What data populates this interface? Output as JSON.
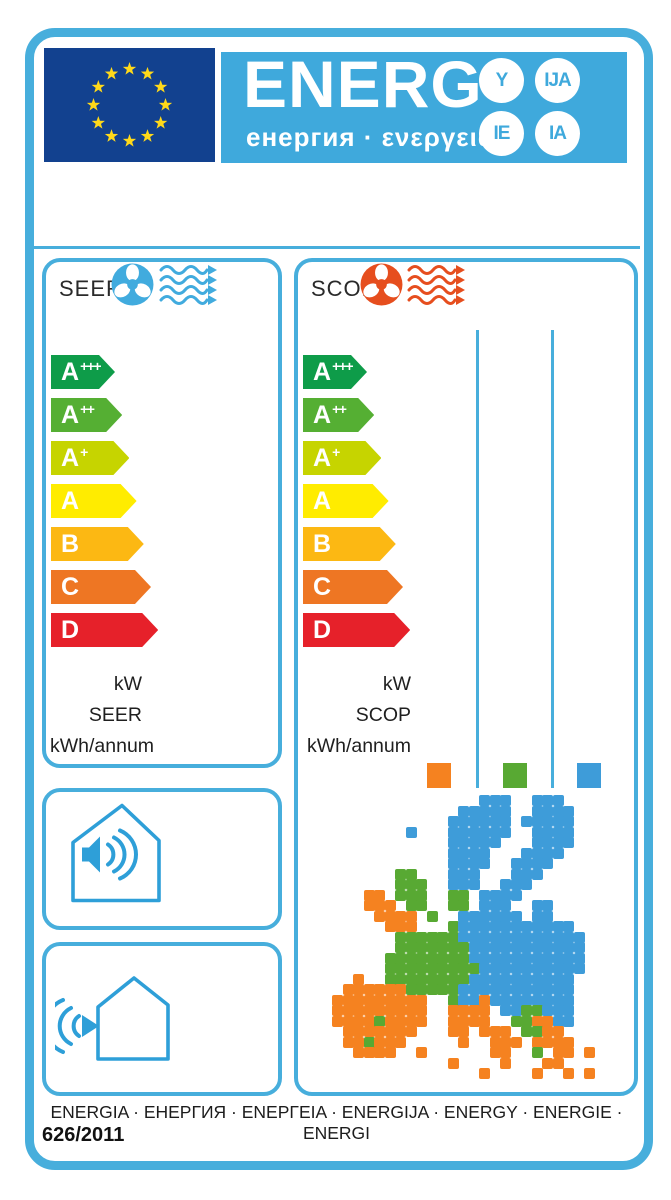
{
  "colors": {
    "frame_border": "#47AEDC",
    "banner": "#3FA9DC",
    "flag_background": "#12418F",
    "flag_star": "#FFD91A",
    "cool_icon": "#41ABDE",
    "heat_icon": "#E64E1E",
    "noise_icon": "#2E9FD8"
  },
  "header": {
    "brand": "ENERG",
    "brand_sub": "енергия · ενεργεια",
    "circles": [
      "Y",
      "IJA",
      "IE",
      "IA"
    ]
  },
  "rating_classes": [
    {
      "letter": "A",
      "sup": "+++",
      "color": "#0E9C49"
    },
    {
      "letter": "A",
      "sup": "++",
      "color": "#55AF33"
    },
    {
      "letter": "A",
      "sup": "+",
      "color": "#C6D400"
    },
    {
      "letter": "A",
      "sup": "",
      "color": "#FFEC00"
    },
    {
      "letter": "B",
      "sup": "",
      "color": "#FCB813"
    },
    {
      "letter": "C",
      "sup": "",
      "color": "#EE7623"
    },
    {
      "letter": "D",
      "sup": "",
      "color": "#E6212A"
    }
  ],
  "seer_panel": {
    "title": "SEER",
    "units": [
      "kW",
      "SEER",
      "kWh/annum"
    ]
  },
  "scop_panel": {
    "title": "SCOP",
    "units": [
      "kW",
      "SCOP",
      "kWh/annum"
    ],
    "zones": [
      {
        "name": "warmer",
        "color": "#F58220"
      },
      {
        "name": "average",
        "color": "#58A933"
      },
      {
        "name": "colder",
        "color": "#3E9CD9"
      }
    ]
  },
  "map": {
    "palette": {
      "O": "#F58220",
      "G": "#58A933",
      "B": "#3E9CD9"
    },
    "rows": [
      "..............BBB..BBB......",
      "............BBBBB..BBBB.....",
      "...........BBBBBB.BBBBB.....",
      ".......B...BBBBBB..BBBB.....",
      "...........BBBBB...BBBB.....",
      "...........BBBB...BBBB......",
      "...........BBBB..BBBB.......",
      "......GG...BBB...BBB........",
      "......GGG..BBB..BBB.........",
      "...OO.GGG..GG.BBBB..........",
      "...OOO.GG..GG.BBB..BB.......",
      "....OOOO.G..BBBBBB.BB.......",
      ".....OOO...GBBBBBBBBBBB.....",
      "......GGGGGGBBBBBBBBBBBB....",
      "......GGGGGGGBBBBBBBBBBB....",
      ".....GGGGGGGGBBBBBBBBBBB....",
      ".....GGGGGGGGGBBBBBBBBBB....",
      "..O..GGGGGGGGBBBBBBBBBB.....",
      ".OOOOOOGGGGGBBBBBBBBBBB.....",
      "OOOOOOOOO..GBBOBBBBBBBB.....",
      "OOOOOOOOO..OOOO.BBGGBBB.....",
      "OOOOGOOOO..OOOO..GGOOBB.....",
      ".OOOOOOO...OO.OOO.GGOO......",
      ".OOGOOO.....O..OOO.OOOO.....",
      "..OOOO..O......OO..G.OO.O...",
      "...........O....O...OO......",
      "..............O....O..O.O..."
    ]
  },
  "footer": {
    "languages": "ENERGIA · ЕНЕРГИЯ · ΕΝΕΡΓΕΙΑ · ENERGIJA · ENERGY · ENERGIE · ENERGI",
    "regulation": "626/2011"
  }
}
